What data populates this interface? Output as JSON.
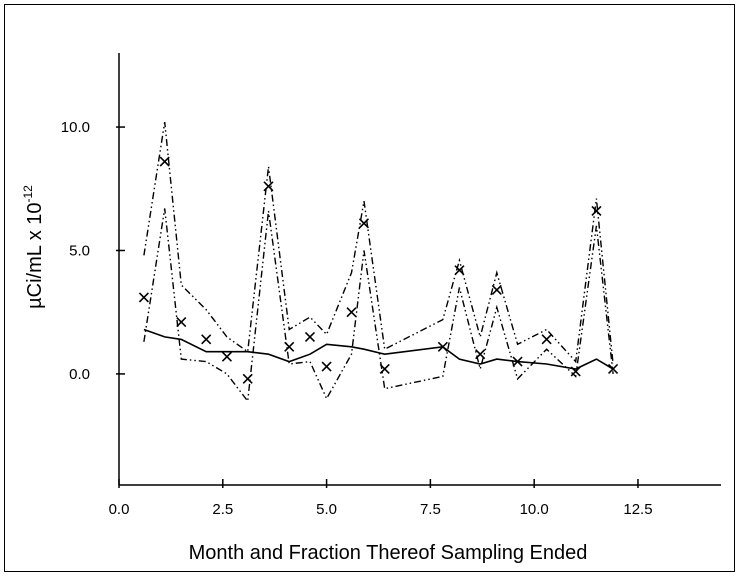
{
  "chart_data": {
    "type": "line",
    "title": "",
    "xlabel": "Month and Fraction Thereof Sampling Ended",
    "ylabel": "µCi/mL x 10",
    "ylabel_exponent": "-12",
    "xlim": [
      0,
      14.5
    ],
    "ylim": [
      -4.5,
      13
    ],
    "x_ticks": [
      0.0,
      2.5,
      5.0,
      7.5,
      10.0,
      12.5
    ],
    "x_tick_labels": [
      "0.0",
      "2.5",
      "5.0",
      "7.5",
      "10.0",
      "12.5"
    ],
    "y_ticks": [
      0.0,
      5.0,
      10.0
    ],
    "y_tick_labels": [
      "0.0",
      "5.0",
      "10.0"
    ],
    "grid": false,
    "colors": {
      "ink": "#000000",
      "background": "#ffffff"
    },
    "series": [
      {
        "style": "solid",
        "x": [
          0.6,
          1.1,
          1.5,
          2.1,
          2.6,
          3.1,
          3.6,
          4.1,
          4.6,
          5.0,
          5.6,
          5.9,
          6.4,
          7.8,
          8.2,
          8.7,
          9.1,
          9.6,
          10.3,
          11.0,
          11.5,
          11.9
        ],
        "values": [
          1.8,
          1.5,
          1.4,
          0.9,
          0.9,
          0.9,
          0.8,
          0.5,
          0.8,
          1.2,
          1.1,
          1.0,
          0.8,
          1.1,
          0.6,
          0.4,
          0.6,
          0.5,
          0.4,
          0.2,
          0.6,
          0.2
        ]
      },
      {
        "style": "dash-dot-dot",
        "x": [
          0.6,
          1.1,
          1.5,
          2.1,
          2.6,
          3.1,
          3.6,
          4.1,
          4.6,
          5.0,
          5.6,
          5.9,
          6.4,
          7.8,
          8.2,
          8.7,
          9.1,
          9.6,
          10.3,
          11.0,
          11.5,
          11.9
        ],
        "values": [
          4.8,
          10.2,
          3.6,
          2.6,
          1.5,
          0.9,
          8.4,
          1.8,
          2.3,
          1.6,
          4.1,
          7.0,
          1.0,
          2.2,
          4.6,
          1.5,
          4.1,
          1.2,
          1.8,
          0.5,
          7.1,
          0.4
        ]
      },
      {
        "style": "dash-dot-dot",
        "x": [
          0.6,
          1.1,
          1.5,
          2.1,
          2.6,
          3.1,
          3.6,
          4.1,
          4.6,
          5.0,
          5.6,
          5.9,
          6.4,
          7.8,
          8.2,
          8.7,
          9.1,
          9.6,
          10.3,
          11.0,
          11.5,
          11.9
        ],
        "values": [
          1.3,
          6.7,
          0.6,
          0.5,
          0.0,
          -1.1,
          6.6,
          0.4,
          0.5,
          -1.0,
          0.8,
          5.0,
          -0.6,
          -0.1,
          3.5,
          0.2,
          2.7,
          -0.2,
          1.0,
          -0.1,
          6.0,
          0.0
        ]
      },
      {
        "style": "marker-x",
        "x": [
          0.6,
          1.1,
          1.5,
          2.1,
          2.6,
          3.1,
          3.6,
          4.1,
          4.6,
          5.0,
          5.6,
          5.9,
          6.4,
          7.8,
          8.2,
          8.7,
          9.1,
          9.6,
          10.3,
          11.0,
          11.5,
          11.9
        ],
        "values": [
          3.1,
          8.6,
          2.1,
          1.4,
          0.7,
          -0.2,
          7.6,
          1.1,
          1.5,
          0.3,
          2.5,
          6.1,
          0.2,
          1.1,
          4.2,
          0.8,
          3.4,
          0.5,
          1.4,
          0.1,
          6.6,
          0.2
        ]
      }
    ]
  }
}
